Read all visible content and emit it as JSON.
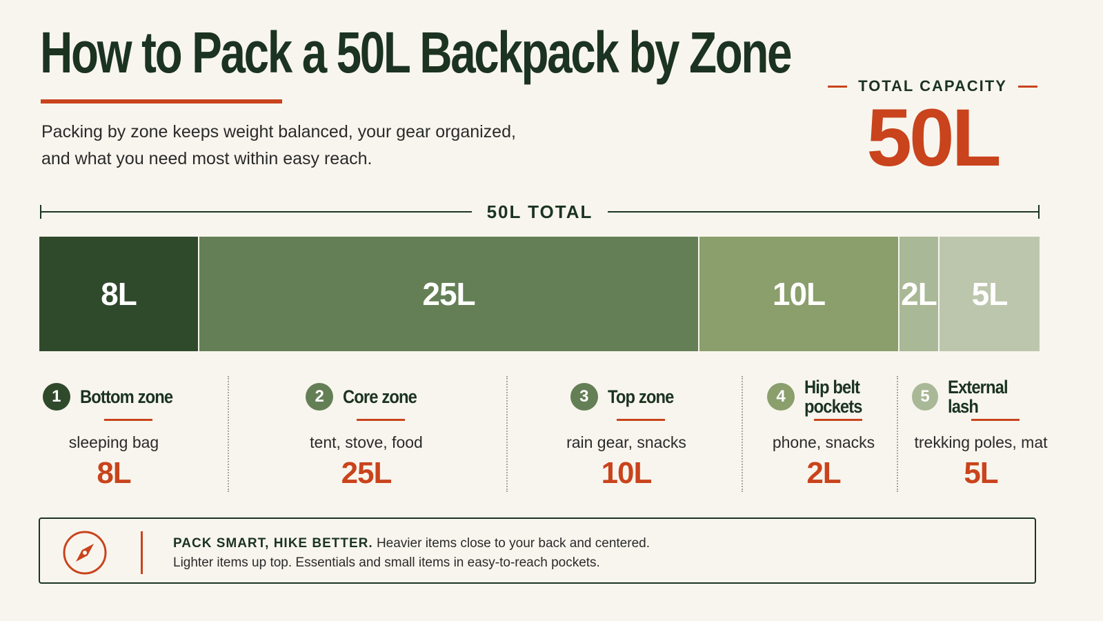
{
  "header": {
    "title": "How to Pack a 50L Backpack by Zone",
    "subtitle_line1": "Packing by zone keeps weight balanced, your gear organized,",
    "subtitle_line2": "and what you need most within easy reach."
  },
  "capacity": {
    "label": "TOTAL CAPACITY",
    "value": "50L"
  },
  "total_label": "50L TOTAL",
  "colors": {
    "accent": "#c9431c",
    "zone1": "#2f4a2b",
    "zone2": "#647f55",
    "zone3": "#8a9f6c",
    "zone4": "#a9b896",
    "zone5": "#bcc6ad"
  },
  "chart_data": {
    "type": "bar",
    "orientation": "horizontal-stacked",
    "total": 50,
    "unit": "L",
    "categories": [
      "Bottom zone",
      "Core zone",
      "Top zone",
      "Hip belt pockets",
      "External lash"
    ],
    "values": [
      8,
      25,
      10,
      2,
      5
    ],
    "labels": [
      "8L",
      "25L",
      "10L",
      "2L",
      "5L"
    ]
  },
  "zones": [
    {
      "num": "1",
      "title": "Bottom zone",
      "items": "sleeping bag",
      "volume": "8L"
    },
    {
      "num": "2",
      "title": "Core zone",
      "items": "tent, stove, food",
      "volume": "25L"
    },
    {
      "num": "3",
      "title": "Top zone",
      "items": "rain gear, snacks",
      "volume": "10L"
    },
    {
      "num": "4",
      "title": "Hip belt pockets",
      "items": "phone, snacks",
      "volume": "2L"
    },
    {
      "num": "5",
      "title": "External lash",
      "items": "trekking poles, mat",
      "volume": "5L"
    }
  ],
  "tip": {
    "icon": "compass-icon",
    "bold": "PACK SMART, HIKE BETTER.",
    "line1": "Heavier items close to your back and centered.",
    "line2": "Lighter items up top. Essentials and small items in easy-to-reach pockets."
  }
}
